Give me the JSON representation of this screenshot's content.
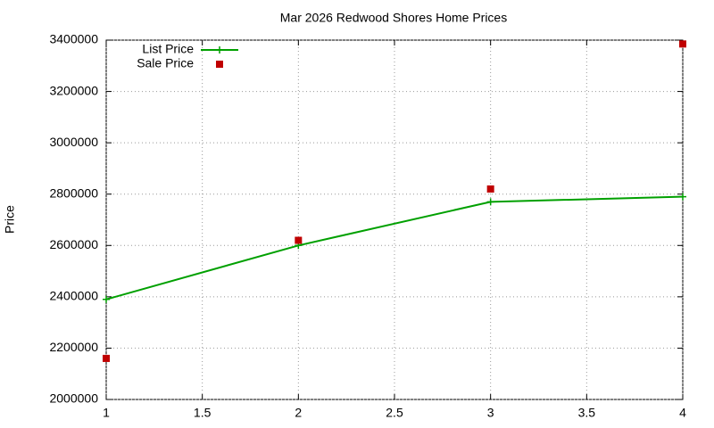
{
  "chart_data": {
    "type": "line",
    "title": "Mar 2026 Redwood Shores Home Prices",
    "y_label": "Price",
    "x": [
      1,
      2,
      3,
      4
    ],
    "series": [
      {
        "name": "List Price",
        "color": "#00a000",
        "mode": "lines+markers",
        "values": [
          2390000,
          2600000,
          2770000,
          2790000
        ]
      },
      {
        "name": "Sale Price",
        "color": "#c00000",
        "mode": "markers",
        "values": [
          2160000,
          2620000,
          2820000,
          3385000
        ]
      }
    ],
    "xlim": [
      1,
      4
    ],
    "xticks": [
      1,
      1.5,
      2,
      2.5,
      3,
      3.5,
      4
    ],
    "ylim": [
      2000000,
      3400000
    ],
    "yticks": [
      2000000,
      2200000,
      2400000,
      2600000,
      2800000,
      3000000,
      3200000,
      3400000
    ],
    "grid": true,
    "legend": "top-left"
  }
}
